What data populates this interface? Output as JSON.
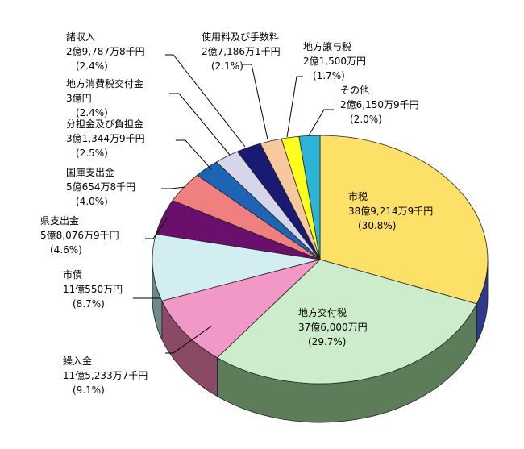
{
  "chart_data": {
    "type": "pie",
    "title": "",
    "slices": [
      {
        "label": "市税",
        "amount": "38億9,214万9千円",
        "pct_text": "(30.8%)",
        "value": 30.8,
        "color": "#fde068",
        "side": "#2e3a8c"
      },
      {
        "label": "地方交付税",
        "amount": "37億6,000万円",
        "pct_text": "(29.7%)",
        "value": 29.7,
        "color": "#cdeccb",
        "side": "#5d7c5a"
      },
      {
        "label": "繰入金",
        "amount": "11億5,233万7千円",
        "pct_text": "(9.1%)",
        "value": 9.1,
        "color": "#f298c6",
        "side": "#8a4a66"
      },
      {
        "label": "市債",
        "amount": "11億550万円",
        "pct_text": "(8.7%)",
        "value": 8.7,
        "color": "#d3eef2",
        "side": "#6d8a8e"
      },
      {
        "label": "県支出金",
        "amount": "5億8,076万9千円",
        "pct_text": "(4.6%)",
        "value": 4.6,
        "color": "#6a0f6b",
        "side": "#3c0a3d"
      },
      {
        "label": "国庫支出金",
        "amount": "5億654万8千円",
        "pct_text": "(4.0%)",
        "value": 4.0,
        "color": "#f08080",
        "side": "#8a4646"
      },
      {
        "label": "分担金及び負担金",
        "amount": "3億1,344万9千円",
        "pct_text": "(2.5%)",
        "value": 2.5,
        "color": "#1e64b4",
        "side": "#113a6a"
      },
      {
        "label": "地方消費税交付金",
        "amount": "3億円",
        "pct_text": "(2.4%)",
        "value": 2.4,
        "color": "#d6d6ea",
        "side": "#7a7a8e"
      },
      {
        "label": "諸収入",
        "amount": "2億9,787万8千円",
        "pct_text": "(2.4%)",
        "value": 2.4,
        "color": "#1a1a72",
        "side": "#0e0e42"
      },
      {
        "label": "使用料及び手数料",
        "amount": "2億7,186万1千円",
        "pct_text": "(2.1%)",
        "value": 2.1,
        "color": "#f6c89c",
        "side": "#8e7256"
      },
      {
        "label": "地方譲与税",
        "amount": "2億1,500万円",
        "pct_text": "(1.7%)",
        "value": 1.7,
        "color": "#ffff1e",
        "side": "#8e8e10"
      },
      {
        "label": "その他",
        "amount": "2億6,150万9千円",
        "pct_text": "(2.0%)",
        "value": 2.0,
        "color": "#2cb4d8",
        "side": "#196680"
      }
    ]
  }
}
